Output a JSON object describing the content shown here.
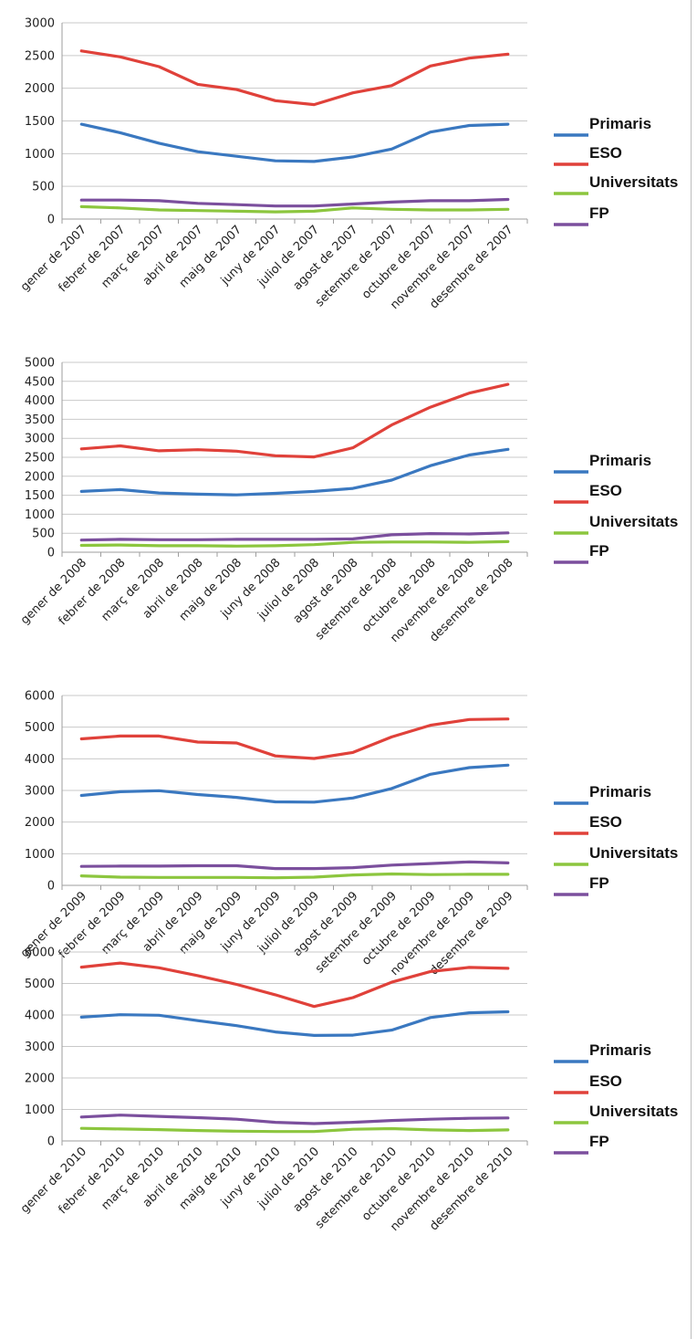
{
  "chart_data": [
    {
      "type": "line",
      "ylim": [
        0,
        3000
      ],
      "yticks": [
        0,
        500,
        1000,
        1500,
        2000,
        2500,
        3000
      ],
      "categories": [
        "gener de 2007",
        "febrer de 2007",
        "març de 2007",
        "abril de 2007",
        "maig de 2007",
        "juny de 2007",
        "juliol de 2007",
        "agost de 2007",
        "setembre de 2007",
        "octubre de 2007",
        "novembre de 2007",
        "desembre de 2007"
      ],
      "grid": true,
      "legend": "right",
      "series": [
        {
          "name": "Primaris",
          "color": "#3a78c0",
          "values": [
            1450,
            1320,
            1160,
            1030,
            960,
            890,
            880,
            950,
            1070,
            1330,
            1430,
            1450
          ]
        },
        {
          "name": "ESO",
          "color": "#e0413a",
          "values": [
            2570,
            2480,
            2330,
            2060,
            1980,
            1810,
            1750,
            1930,
            2040,
            2340,
            2460,
            2520
          ]
        },
        {
          "name": "Universitats",
          "color": "#8cc63e",
          "values": [
            190,
            170,
            140,
            130,
            120,
            110,
            120,
            170,
            150,
            140,
            140,
            150
          ]
        },
        {
          "name": "FP",
          "color": "#7b4f9d",
          "values": [
            290,
            290,
            280,
            240,
            220,
            200,
            200,
            230,
            260,
            280,
            280,
            300
          ]
        }
      ]
    },
    {
      "type": "line",
      "ylim": [
        0,
        5000
      ],
      "yticks": [
        0,
        500,
        1000,
        1500,
        2000,
        2500,
        3000,
        3500,
        4000,
        4500,
        5000
      ],
      "categories": [
        "gener de 2008",
        "febrer de 2008",
        "març de 2008",
        "abril de 2008",
        "maig de 2008",
        "juny de 2008",
        "juliol de 2008",
        "agost de 2008",
        "setembre de 2008",
        "octubre de 2008",
        "novembre de 2008",
        "desembre de 2008"
      ],
      "grid": true,
      "legend": "right",
      "series": [
        {
          "name": "Primaris",
          "color": "#3a78c0",
          "values": [
            1600,
            1650,
            1560,
            1530,
            1510,
            1550,
            1600,
            1680,
            1900,
            2280,
            2560,
            2710
          ]
        },
        {
          "name": "ESO",
          "color": "#e0413a",
          "values": [
            2720,
            2800,
            2670,
            2700,
            2660,
            2540,
            2510,
            2750,
            3350,
            3820,
            4190,
            4420
          ]
        },
        {
          "name": "Universitats",
          "color": "#8cc63e",
          "values": [
            180,
            190,
            170,
            170,
            160,
            170,
            200,
            260,
            270,
            270,
            260,
            280
          ]
        },
        {
          "name": "FP",
          "color": "#7b4f9d",
          "values": [
            320,
            340,
            330,
            330,
            340,
            340,
            340,
            350,
            460,
            490,
            480,
            510
          ]
        }
      ]
    },
    {
      "type": "line",
      "ylim": [
        0,
        6000
      ],
      "yticks": [
        0,
        1000,
        2000,
        3000,
        4000,
        5000,
        6000
      ],
      "categories": [
        "gener de 2009",
        "febrer de 2009",
        "març de 2009",
        "abril de 2009",
        "maig de 2009",
        "juny de 2009",
        "juliol de 2009",
        "agost de 2009",
        "setembre de 2009",
        "octubre de 2009",
        "novembre de 2009",
        "desembre de 2009"
      ],
      "grid": true,
      "legend": "right",
      "series": [
        {
          "name": "Primaris",
          "color": "#3a78c0",
          "values": [
            2840,
            2960,
            2990,
            2870,
            2780,
            2640,
            2630,
            2760,
            3060,
            3510,
            3720,
            3800
          ]
        },
        {
          "name": "ESO",
          "color": "#e0413a",
          "values": [
            4630,
            4720,
            4720,
            4530,
            4500,
            4090,
            4010,
            4200,
            4690,
            5060,
            5240,
            5260
          ]
        },
        {
          "name": "Universitats",
          "color": "#8cc63e",
          "values": [
            300,
            260,
            250,
            250,
            250,
            240,
            260,
            330,
            360,
            340,
            350,
            350
          ]
        },
        {
          "name": "FP",
          "color": "#7b4f9d",
          "values": [
            600,
            610,
            610,
            620,
            620,
            530,
            530,
            560,
            640,
            690,
            740,
            710
          ]
        }
      ]
    },
    {
      "type": "line",
      "ylim": [
        0,
        6000
      ],
      "yticks": [
        0,
        1000,
        2000,
        3000,
        4000,
        5000,
        6000
      ],
      "categories": [
        "gener de 2010",
        "febrer de 2010",
        "març de 2010",
        "abril de 2010",
        "maig de 2010",
        "juny de 2010",
        "juliol de 2010",
        "agost de 2010",
        "setembre de 2010",
        "octubre de 2010",
        "novembre de 2010",
        "desembre de 2010"
      ],
      "grid": true,
      "legend": "right",
      "series": [
        {
          "name": "Primaris",
          "color": "#3a78c0",
          "values": [
            3930,
            4010,
            3990,
            3820,
            3660,
            3460,
            3350,
            3360,
            3520,
            3920,
            4070,
            4100
          ]
        },
        {
          "name": "ESO",
          "color": "#e0413a",
          "values": [
            5520,
            5650,
            5500,
            5250,
            4970,
            4640,
            4270,
            4550,
            5040,
            5380,
            5510,
            5480
          ]
        },
        {
          "name": "Universitats",
          "color": "#8cc63e",
          "values": [
            400,
            380,
            360,
            330,
            310,
            300,
            300,
            370,
            390,
            350,
            330,
            350
          ]
        },
        {
          "name": "FP",
          "color": "#7b4f9d",
          "values": [
            760,
            820,
            780,
            740,
            690,
            590,
            550,
            590,
            650,
            690,
            720,
            730
          ]
        }
      ]
    }
  ]
}
